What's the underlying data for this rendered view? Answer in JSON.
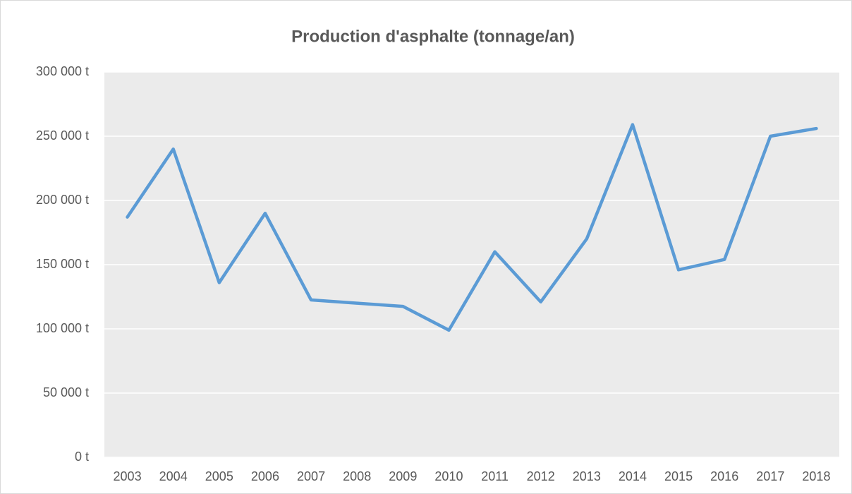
{
  "chart_data": {
    "type": "line",
    "title": "Production d'asphalte (tonnage/an)",
    "categories": [
      "2003",
      "2004",
      "2005",
      "2006",
      "2007",
      "2008",
      "2009",
      "2010",
      "2011",
      "2012",
      "2013",
      "2014",
      "2015",
      "2016",
      "2017",
      "2018"
    ],
    "series": [
      {
        "name": "Production",
        "color": "#5b9bd5",
        "values": [
          187000,
          240000,
          136000,
          190000,
          122500,
          120000,
          117500,
          99000,
          160000,
          121000,
          170000,
          259000,
          146000,
          154000,
          250000,
          256000
        ]
      }
    ],
    "ylim": [
      0,
      300000
    ],
    "yticks": [
      {
        "value": 0,
        "label": "0 t"
      },
      {
        "value": 50000,
        "label": "50 000 t"
      },
      {
        "value": 100000,
        "label": "100 000 t"
      },
      {
        "value": 150000,
        "label": "150 000 t"
      },
      {
        "value": 200000,
        "label": "200 000 t"
      },
      {
        "value": 250000,
        "label": "250 000 t"
      },
      {
        "value": 300000,
        "label": "300 000 t"
      }
    ],
    "grid": true
  }
}
